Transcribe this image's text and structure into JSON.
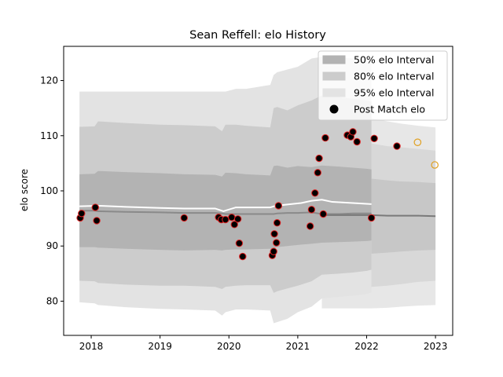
{
  "chart_data": {
    "type": "scatter",
    "title": "Sean Reffell: elo History",
    "xlabel": "",
    "ylabel": "elo score",
    "xlim": [
      2017.6,
      2023.25
    ],
    "ylim": [
      73.8,
      126.2
    ],
    "x_ticks": [
      2018,
      2019,
      2020,
      2021,
      2022,
      2023
    ],
    "y_ticks": [
      80,
      90,
      100,
      110,
      120
    ],
    "grid": false,
    "legend_position": "top-right",
    "legend": [
      {
        "label": "50% elo Interval",
        "kind": "band",
        "color": "#b3b3b3"
      },
      {
        "label": "80% elo Interval",
        "kind": "band",
        "color": "#cccccc"
      },
      {
        "label": "95% elo Interval",
        "kind": "band",
        "color": "#e3e3e3"
      },
      {
        "label": "Post Match elo",
        "kind": "marker",
        "color": "#000000"
      }
    ],
    "bands": {
      "x": [
        2017.83,
        2018.05,
        2018.1,
        2018.5,
        2019.0,
        2019.35,
        2019.8,
        2019.9,
        2019.95,
        2020.1,
        2020.25,
        2020.6,
        2020.65,
        2020.7,
        2020.85,
        2021.0,
        2021.2,
        2021.35,
        2021.6,
        2021.8,
        2022.0,
        2022.07
      ],
      "lower95": [
        79.8,
        79.6,
        79.3,
        78.9,
        78.6,
        78.5,
        78.3,
        77.4,
        78.0,
        78.5,
        78.5,
        78.3,
        76.0,
        76.2,
        76.8,
        78.0,
        79.0,
        80.5,
        80.8,
        81.0,
        81.3,
        81.6
      ],
      "lower80": [
        83.7,
        83.6,
        83.3,
        83.0,
        82.8,
        82.8,
        82.6,
        82.2,
        82.6,
        82.8,
        82.9,
        82.9,
        81.5,
        81.8,
        82.3,
        82.8,
        83.6,
        84.8,
        85.0,
        85.2,
        85.5,
        85.7
      ],
      "lower50": [
        89.8,
        89.8,
        89.7,
        89.5,
        89.3,
        89.2,
        89.3,
        89.2,
        89.3,
        89.4,
        89.4,
        89.5,
        89.5,
        89.8,
        90.0,
        90.2,
        90.4,
        90.6,
        90.7,
        90.8,
        90.9,
        91.0
      ],
      "mean": [
        96.4,
        96.4,
        96.3,
        96.2,
        96.1,
        96.0,
        96.0,
        95.9,
        95.8,
        95.8,
        95.8,
        95.8,
        95.8,
        95.9,
        96.0,
        96.0,
        96.1,
        95.8,
        95.8,
        95.9,
        95.9,
        95.9
      ],
      "upper50": [
        103.0,
        103.1,
        103.6,
        103.4,
        103.2,
        103.0,
        102.9,
        102.6,
        103.3,
        103.2,
        103.0,
        102.8,
        104.5,
        104.6,
        104.2,
        104.5,
        104.3,
        104.6,
        104.4,
        104.2,
        104.0,
        103.9
      ],
      "upper80": [
        111.6,
        111.7,
        112.6,
        112.3,
        112.0,
        111.9,
        111.7,
        110.8,
        112.0,
        112.0,
        111.8,
        111.5,
        115.0,
        115.2,
        114.6,
        115.5,
        116.4,
        117.3,
        117.0,
        116.7,
        116.4,
        116.2
      ],
      "upper95": [
        118.0,
        118.0,
        118.0,
        118.0,
        118.0,
        118.0,
        118.0,
        118.0,
        118.0,
        118.5,
        118.5,
        119.2,
        121.0,
        121.5,
        122.0,
        122.5,
        124.0,
        124.3,
        124.2,
        124.0,
        123.8,
        123.6
      ]
    },
    "white_line": {
      "x": [
        2017.83,
        2018.1,
        2018.5,
        2019.0,
        2019.35,
        2019.8,
        2019.92,
        2020.1,
        2020.6,
        2020.68,
        2020.9,
        2021.05,
        2021.2,
        2021.35,
        2021.5,
        2021.8,
        2022.07
      ],
      "y": [
        97.2,
        97.3,
        97.1,
        96.9,
        96.8,
        96.8,
        96.3,
        97.0,
        97.0,
        97.3,
        97.6,
        97.8,
        98.2,
        98.4,
        98.0,
        97.8,
        97.6
      ]
    },
    "projection": {
      "x": [
        2021.35,
        2022.07,
        2022.3,
        2022.5,
        2022.75,
        2023.0
      ],
      "lower95": [
        78.7,
        78.7,
        78.8,
        79.0,
        79.2,
        79.3
      ],
      "lower80": [
        82.5,
        82.6,
        82.8,
        83.1,
        83.5,
        83.7
      ],
      "lower50": [
        88.6,
        88.6,
        88.8,
        89.0,
        89.2,
        89.3
      ],
      "mean": [
        95.6,
        95.6,
        95.5,
        95.5,
        95.5,
        95.4
      ],
      "upper50": [
        102.1,
        102.2,
        101.9,
        101.7,
        101.6,
        101.4
      ],
      "upper80": [
        108.6,
        108.6,
        108.1,
        107.9,
        107.6,
        107.3
      ],
      "upper95": [
        113.0,
        113.2,
        112.6,
        112.2,
        111.8,
        111.5
      ]
    },
    "series": [
      {
        "name": "Post Match elo",
        "marker": "filled",
        "points": [
          {
            "x": 2017.84,
            "y": 95.1
          },
          {
            "x": 2017.86,
            "y": 95.9
          },
          {
            "x": 2018.06,
            "y": 97.0
          },
          {
            "x": 2018.08,
            "y": 94.6
          },
          {
            "x": 2019.35,
            "y": 95.1
          },
          {
            "x": 2019.85,
            "y": 95.2
          },
          {
            "x": 2019.89,
            "y": 94.8
          },
          {
            "x": 2019.95,
            "y": 94.8
          },
          {
            "x": 2020.04,
            "y": 95.2
          },
          {
            "x": 2020.08,
            "y": 93.9
          },
          {
            "x": 2020.13,
            "y": 94.9
          },
          {
            "x": 2020.15,
            "y": 90.5
          },
          {
            "x": 2020.2,
            "y": 88.1
          },
          {
            "x": 2020.63,
            "y": 88.3
          },
          {
            "x": 2020.65,
            "y": 89.0
          },
          {
            "x": 2020.66,
            "y": 92.2
          },
          {
            "x": 2020.69,
            "y": 90.6
          },
          {
            "x": 2020.7,
            "y": 94.2
          },
          {
            "x": 2020.72,
            "y": 97.3
          },
          {
            "x": 2021.18,
            "y": 93.6
          },
          {
            "x": 2021.2,
            "y": 96.6
          },
          {
            "x": 2021.25,
            "y": 99.6
          },
          {
            "x": 2021.29,
            "y": 103.3
          },
          {
            "x": 2021.31,
            "y": 105.9
          },
          {
            "x": 2021.37,
            "y": 95.8
          },
          {
            "x": 2021.4,
            "y": 109.6
          },
          {
            "x": 2021.72,
            "y": 110.1
          },
          {
            "x": 2021.77,
            "y": 109.8
          },
          {
            "x": 2021.8,
            "y": 110.7
          },
          {
            "x": 2021.86,
            "y": 108.9
          },
          {
            "x": 2022.07,
            "y": 95.1
          },
          {
            "x": 2022.11,
            "y": 109.5
          },
          {
            "x": 2022.44,
            "y": 108.1
          }
        ]
      },
      {
        "name": "",
        "marker": "hollow",
        "points": [
          {
            "x": 2022.74,
            "y": 108.8
          },
          {
            "x": 2022.99,
            "y": 104.7
          }
        ]
      }
    ]
  }
}
